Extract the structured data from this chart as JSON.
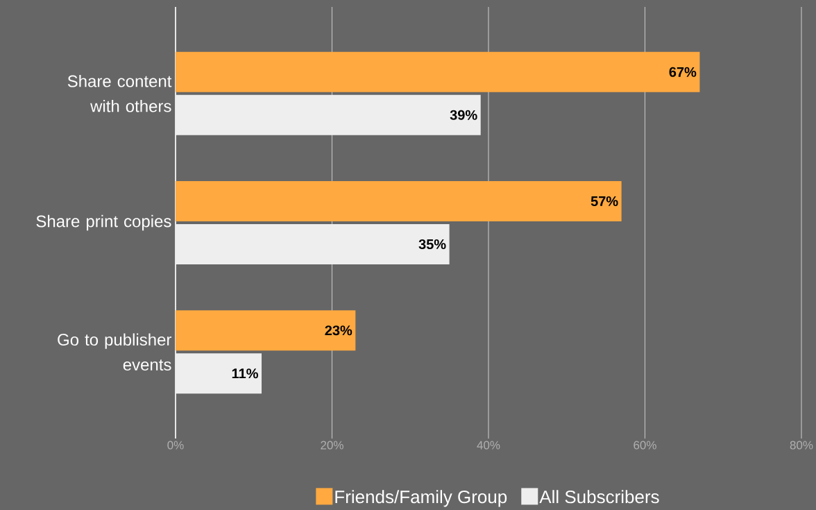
{
  "chart_data": {
    "type": "bar",
    "orientation": "horizontal",
    "categories": [
      "Share content with others",
      "Share print copies",
      "Go to publisher events"
    ],
    "series": [
      {
        "name": "Friends/Family Group",
        "color": "#ffa940",
        "values": [
          67,
          57,
          23
        ],
        "value_labels": [
          "67%",
          "57%",
          "23%"
        ]
      },
      {
        "name": "All Subscribers",
        "color": "#eeeeee",
        "values": [
          39,
          35,
          11
        ],
        "value_labels": [
          "39%",
          "35%",
          "11%"
        ]
      }
    ],
    "xlim": [
      0,
      80
    ],
    "xticks": [
      {
        "value": 0,
        "label": "0%"
      },
      {
        "value": 20,
        "label": "20%"
      },
      {
        "value": 40,
        "label": "40%"
      },
      {
        "value": 60,
        "label": "60%"
      },
      {
        "value": 80,
        "label": "80%"
      }
    ],
    "grid": "x",
    "legend": "bottom"
  }
}
